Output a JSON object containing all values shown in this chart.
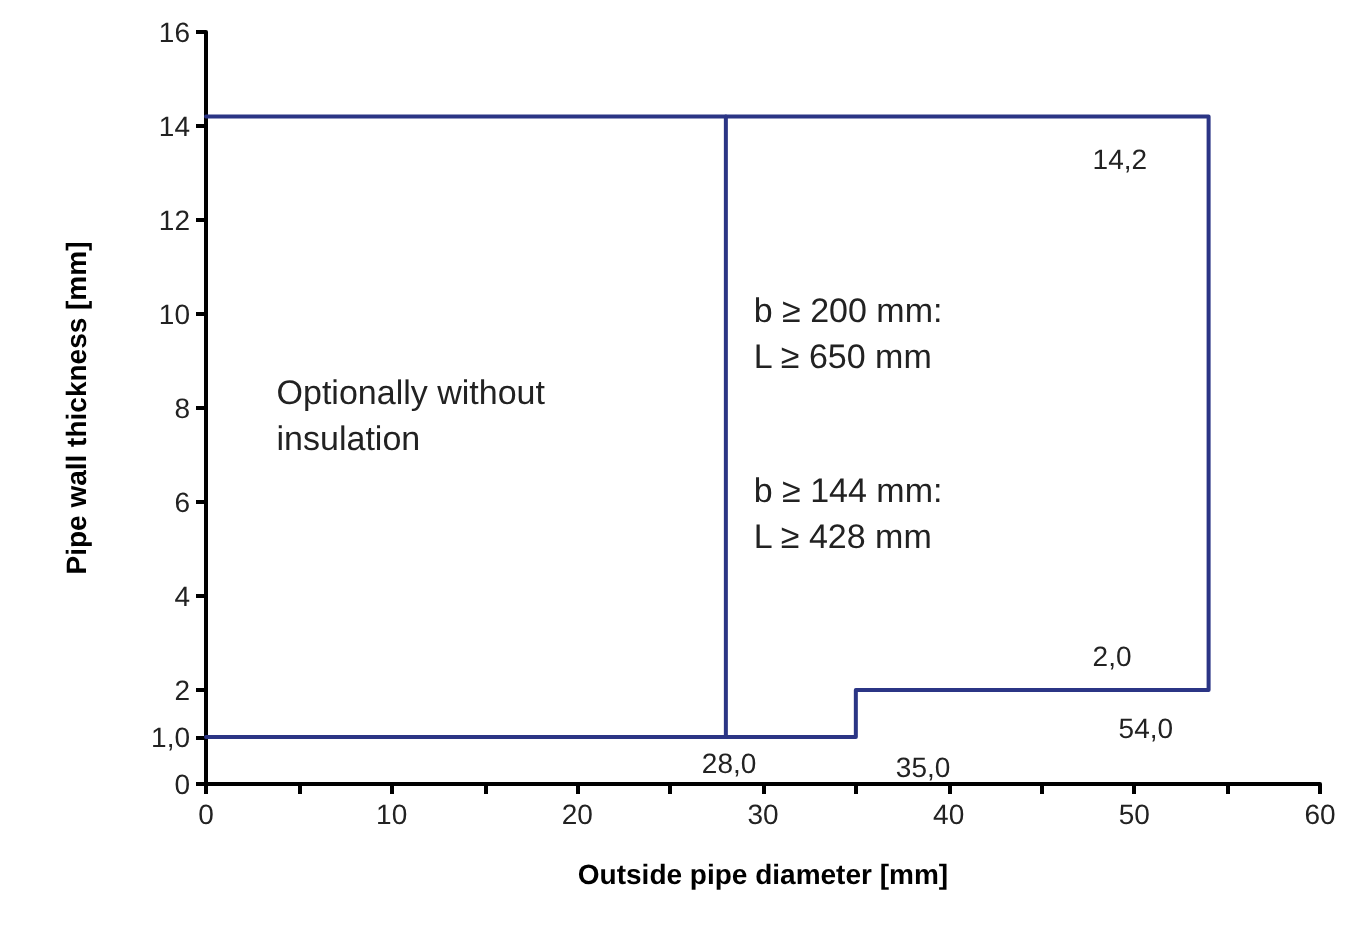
{
  "chart_data": {
    "type": "line",
    "xlabel": "Outside pipe diameter [mm]",
    "ylabel": "Pipe wall thickness [mm]",
    "series": [
      {
        "color": "#2b3585",
        "x": [
          0,
          54,
          54,
          35,
          35,
          0
        ],
        "values": [
          14.2,
          14.2,
          2,
          2,
          1,
          1
        ]
      },
      {
        "color": "#2b3585",
        "x": [
          28,
          28
        ],
        "values": [
          1,
          14.2
        ]
      }
    ],
    "xlim": [
      0,
      60
    ],
    "xticks": [
      0,
      {
        "value": 5,
        "label": null
      },
      10,
      {
        "value": 15,
        "label": null
      },
      20,
      {
        "value": 25,
        "label": null
      },
      30,
      {
        "value": 35,
        "label": null
      },
      40,
      {
        "value": 45,
        "label": null
      },
      50,
      {
        "value": 55,
        "label": null
      },
      60
    ],
    "ylim": [
      0,
      16
    ],
    "yticks": [
      0,
      {
        "value": 1,
        "label": "1,0"
      },
      2,
      4,
      6,
      8,
      10,
      12,
      14,
      16
    ],
    "grid": false,
    "marker": "none",
    "line_style": "solid",
    "annotations": [
      {
        "text": "14,2",
        "x": 54,
        "y": 14.2
      },
      {
        "text": "2,0",
        "x": 54,
        "y": 2
      },
      {
        "text": "54,0",
        "x": 54,
        "y": 2
      },
      {
        "text": "35,0",
        "x": 35,
        "y": 1
      },
      {
        "text": "28,0",
        "x": 28,
        "y": 1
      },
      "Optionally without\ninsulation",
      "b ≥ 200 mm:\nL ≥ 650 mm",
      "b ≥ 144 mm:\nL ≥ 428 mm"
    ]
  }
}
